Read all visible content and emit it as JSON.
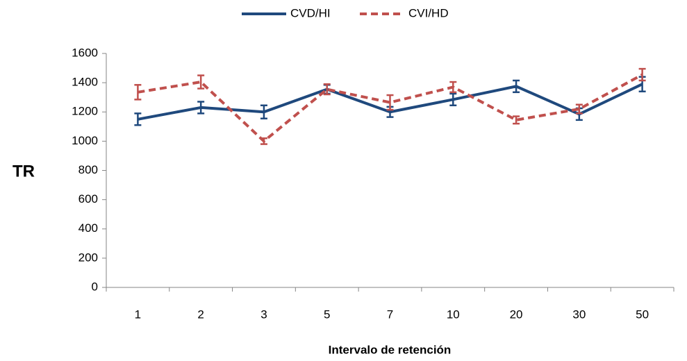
{
  "chart_data": {
    "type": "line",
    "xlabel": "Intervalo de retención",
    "ylabel": "TR",
    "categories": [
      "1",
      "2",
      "3",
      "5",
      "7",
      "10",
      "20",
      "30",
      "50"
    ],
    "series": [
      {
        "name": "CVD/HI",
        "color": "#1f497d",
        "dashed": false,
        "values": [
          1150,
          1230,
          1200,
          1355,
          1200,
          1285,
          1375,
          1185,
          1390
        ],
        "errors": [
          40,
          40,
          45,
          30,
          35,
          40,
          40,
          40,
          50
        ]
      },
      {
        "name": "CVI/HD",
        "color": "#c0504d",
        "dashed": true,
        "values": [
          1335,
          1405,
          1000,
          1355,
          1265,
          1370,
          1145,
          1220,
          1455
        ],
        "errors": [
          50,
          45,
          20,
          35,
          50,
          35,
          25,
          30,
          40
        ]
      }
    ],
    "ylim": [
      0,
      1600
    ],
    "yticks": [
      0,
      200,
      400,
      600,
      800,
      1000,
      1200,
      1400,
      1600
    ],
    "legend": "top"
  }
}
